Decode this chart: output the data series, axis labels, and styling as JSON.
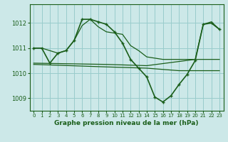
{
  "background_color": "#cce8e8",
  "grid_color": "#99cccc",
  "line_color": "#1a5e1a",
  "title": "Graphe pression niveau de la mer (hPa)",
  "xlim": [
    -0.5,
    23.5
  ],
  "ylim": [
    1008.5,
    1012.75
  ],
  "yticks": [
    1009,
    1010,
    1011,
    1012
  ],
  "xticks": [
    0,
    1,
    2,
    3,
    4,
    5,
    6,
    7,
    8,
    9,
    10,
    11,
    12,
    13,
    14,
    15,
    16,
    17,
    18,
    19,
    20,
    21,
    22,
    23
  ],
  "series": [
    {
      "x": [
        0,
        1,
        2,
        3,
        4,
        5,
        6,
        7,
        8,
        9,
        10,
        11,
        12,
        13,
        14,
        15,
        16,
        17,
        18,
        19,
        20,
        21,
        22,
        23
      ],
      "y": [
        1011.0,
        1011.0,
        1010.4,
        1010.8,
        1010.9,
        1011.3,
        1012.15,
        1012.15,
        1012.05,
        1011.95,
        1011.65,
        1011.2,
        1010.55,
        1010.2,
        1009.85,
        1009.05,
        1008.85,
        1009.1,
        1009.55,
        1009.95,
        1010.5,
        1011.95,
        1012.0,
        1011.75
      ],
      "has_markers": true,
      "lw": 1.2
    },
    {
      "x": [
        0,
        1,
        3,
        4,
        5,
        6,
        7,
        8,
        9,
        10,
        11,
        12,
        13,
        14,
        15,
        16,
        17,
        18,
        19,
        20,
        21,
        22,
        23
      ],
      "y": [
        1011.0,
        1011.0,
        1010.8,
        1010.9,
        1011.3,
        1011.9,
        1012.15,
        1011.85,
        1011.65,
        1011.6,
        1011.55,
        1011.1,
        1010.9,
        1010.65,
        1010.6,
        1010.55,
        1010.55,
        1010.55,
        1010.55,
        1010.55,
        1011.95,
        1012.05,
        1011.75
      ],
      "has_markers": false,
      "lw": 0.9
    },
    {
      "x": [
        0,
        9,
        14,
        20,
        23
      ],
      "y": [
        1010.4,
        1010.35,
        1010.3,
        1010.55,
        1010.55
      ],
      "has_markers": false,
      "lw": 0.9
    },
    {
      "x": [
        0,
        9,
        14,
        18,
        23
      ],
      "y": [
        1010.35,
        1010.25,
        1010.2,
        1010.1,
        1010.1
      ],
      "has_markers": false,
      "lw": 0.9
    }
  ]
}
